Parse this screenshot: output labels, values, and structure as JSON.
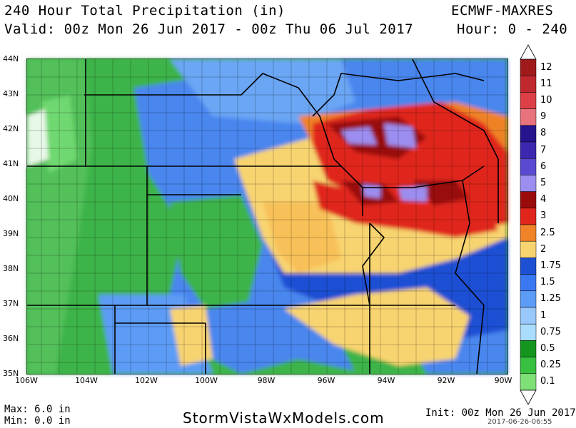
{
  "header": {
    "title": "240 Hour Total Precipitation (in)",
    "valid": "Valid: 00z Mon 26 Jun 2017 - 00z Thu 06 Jul 2017",
    "model": "ECMWF-MAXRES",
    "hours": "Hour: 0 - 240"
  },
  "map": {
    "lat_labels": [
      "44N",
      "43N",
      "42N",
      "41N",
      "40N",
      "39N",
      "38N",
      "37N",
      "36N",
      "35N"
    ],
    "lon_labels": [
      "106W",
      "104W",
      "102W",
      "100W",
      "98W",
      "96W",
      "94W",
      "92W",
      "90W"
    ]
  },
  "legend": {
    "labels": [
      "12",
      "11",
      "10",
      "9",
      "8",
      "7",
      "6",
      "5",
      "4",
      "3",
      "2.5",
      "2",
      "1.75",
      "1.5",
      "1.25",
      "1",
      "0.75",
      "0.5",
      "0.25",
      "0.1"
    ],
    "colors": [
      "#a01a1c",
      "#c0282e",
      "#dc4046",
      "#e8737c",
      "#26138e",
      "#3a28b0",
      "#5a4ad2",
      "#9c8ef0",
      "#9a0c0c",
      "#e0261c",
      "#f08228",
      "#f8d470",
      "#1e50d4",
      "#3a78f2",
      "#5c9cf6",
      "#98c8fa",
      "#aadcfe",
      "#14961e",
      "#38c040",
      "#80e078"
    ]
  },
  "footer": {
    "max": "Max: 6.0 in",
    "min": "Min: 0.0 in",
    "site": "StormVistaWxModels.com",
    "init": "Init: 00z Mon 26 Jun 2017",
    "stamp": "2017-06-26-06:55"
  }
}
